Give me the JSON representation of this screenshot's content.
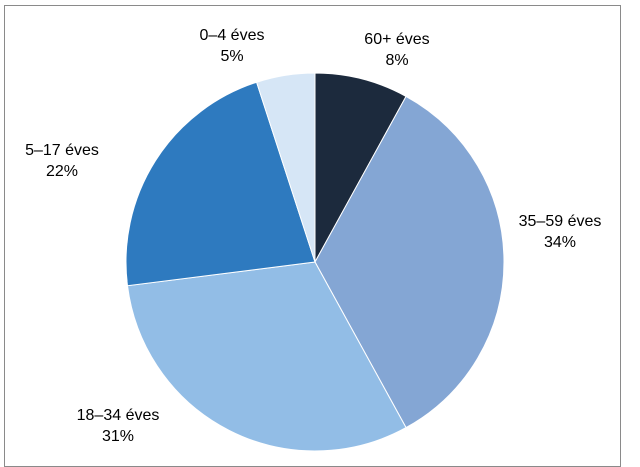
{
  "chart_data": {
    "type": "pie",
    "title": "",
    "slices": [
      {
        "label": "60+ éves",
        "value_label": "8%",
        "value": 8,
        "color": "#1c2a3d"
      },
      {
        "label": "35–59 éves",
        "value_label": "34%",
        "value": 34,
        "color": "#84a6d4"
      },
      {
        "label": "18–34 éves",
        "value_label": "31%",
        "value": 31,
        "color": "#92bde6"
      },
      {
        "label": "5–17 éves",
        "value_label": "22%",
        "value": 22,
        "color": "#2e7abf"
      },
      {
        "label": "0–4 éves",
        "value_label": "5%",
        "value": 5,
        "color": "#d6e6f6"
      }
    ]
  }
}
